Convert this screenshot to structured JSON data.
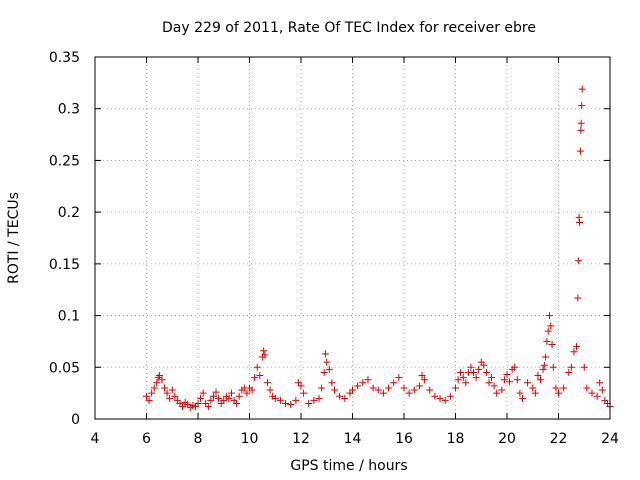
{
  "chart_data": {
    "type": "scatter",
    "title": "Day 229 of 2011, Rate Of TEC Index for receiver ebre",
    "xlabel": "GPS time / hours",
    "ylabel": "ROTI / TECUs",
    "xlim": [
      4,
      24
    ],
    "ylim": [
      0,
      0.35
    ],
    "x_ticks": [
      4,
      6,
      8,
      10,
      12,
      14,
      16,
      18,
      20,
      22,
      24
    ],
    "x_tick_labels": [
      "4",
      "6",
      "8",
      "10",
      "12",
      "14",
      "16",
      "18",
      "20",
      "22",
      "24"
    ],
    "y_ticks": [
      0,
      0.05,
      0.1,
      0.15,
      0.2,
      0.25,
      0.3,
      0.35
    ],
    "y_tick_labels": [
      "0",
      "0.05",
      "0.1",
      "0.15",
      "0.2",
      "0.25",
      "0.3",
      "0.35"
    ],
    "grid": true,
    "marker": "+",
    "marker_color": "#e00000",
    "series": [
      {
        "name": "ROTI",
        "points": [
          [
            6.0,
            0.022
          ],
          [
            6.1,
            0.018
          ],
          [
            6.2,
            0.025
          ],
          [
            6.3,
            0.03
          ],
          [
            6.4,
            0.035
          ],
          [
            6.45,
            0.04
          ],
          [
            6.5,
            0.042
          ],
          [
            6.6,
            0.038
          ],
          [
            6.7,
            0.03
          ],
          [
            6.8,
            0.025
          ],
          [
            6.9,
            0.02
          ],
          [
            7.0,
            0.028
          ],
          [
            7.1,
            0.022
          ],
          [
            7.2,
            0.018
          ],
          [
            7.3,
            0.015
          ],
          [
            7.4,
            0.012
          ],
          [
            7.5,
            0.016
          ],
          [
            7.6,
            0.014
          ],
          [
            7.7,
            0.011
          ],
          [
            7.8,
            0.013
          ],
          [
            7.9,
            0.012
          ],
          [
            8.0,
            0.015
          ],
          [
            8.1,
            0.02
          ],
          [
            8.2,
            0.025
          ],
          [
            8.3,
            0.015
          ],
          [
            8.4,
            0.012
          ],
          [
            8.5,
            0.018
          ],
          [
            8.6,
            0.022
          ],
          [
            8.7,
            0.026
          ],
          [
            8.8,
            0.02
          ],
          [
            8.9,
            0.015
          ],
          [
            9.0,
            0.018
          ],
          [
            9.1,
            0.022
          ],
          [
            9.2,
            0.02
          ],
          [
            9.3,
            0.025
          ],
          [
            9.4,
            0.018
          ],
          [
            9.5,
            0.015
          ],
          [
            9.6,
            0.022
          ],
          [
            9.7,
            0.028
          ],
          [
            9.8,
            0.03
          ],
          [
            9.9,
            0.025
          ],
          [
            10.0,
            0.03
          ],
          [
            10.1,
            0.028
          ],
          [
            10.2,
            0.04
          ],
          [
            10.3,
            0.05
          ],
          [
            10.4,
            0.042
          ],
          [
            10.5,
            0.06
          ],
          [
            10.55,
            0.066
          ],
          [
            10.6,
            0.062
          ],
          [
            10.7,
            0.035
          ],
          [
            10.8,
            0.028
          ],
          [
            10.9,
            0.022
          ],
          [
            11.0,
            0.02
          ],
          [
            11.2,
            0.018
          ],
          [
            11.4,
            0.015
          ],
          [
            11.6,
            0.014
          ],
          [
            11.8,
            0.018
          ],
          [
            11.9,
            0.035
          ],
          [
            12.0,
            0.032
          ],
          [
            12.1,
            0.025
          ],
          [
            12.3,
            0.015
          ],
          [
            12.5,
            0.018
          ],
          [
            12.7,
            0.02
          ],
          [
            12.8,
            0.03
          ],
          [
            12.9,
            0.045
          ],
          [
            12.95,
            0.063
          ],
          [
            13.0,
            0.055
          ],
          [
            13.1,
            0.048
          ],
          [
            13.2,
            0.035
          ],
          [
            13.3,
            0.028
          ],
          [
            13.5,
            0.022
          ],
          [
            13.7,
            0.02
          ],
          [
            13.9,
            0.025
          ],
          [
            14.0,
            0.028
          ],
          [
            14.2,
            0.032
          ],
          [
            14.4,
            0.035
          ],
          [
            14.6,
            0.038
          ],
          [
            14.8,
            0.03
          ],
          [
            15.0,
            0.028
          ],
          [
            15.2,
            0.025
          ],
          [
            15.4,
            0.03
          ],
          [
            15.6,
            0.035
          ],
          [
            15.8,
            0.04
          ],
          [
            16.0,
            0.03
          ],
          [
            16.2,
            0.025
          ],
          [
            16.4,
            0.028
          ],
          [
            16.6,
            0.032
          ],
          [
            16.7,
            0.042
          ],
          [
            16.8,
            0.038
          ],
          [
            17.0,
            0.028
          ],
          [
            17.2,
            0.022
          ],
          [
            17.4,
            0.02
          ],
          [
            17.6,
            0.018
          ],
          [
            17.8,
            0.022
          ],
          [
            18.0,
            0.03
          ],
          [
            18.1,
            0.038
          ],
          [
            18.2,
            0.045
          ],
          [
            18.3,
            0.04
          ],
          [
            18.4,
            0.035
          ],
          [
            18.5,
            0.045
          ],
          [
            18.6,
            0.05
          ],
          [
            18.7,
            0.045
          ],
          [
            18.8,
            0.04
          ],
          [
            18.9,
            0.048
          ],
          [
            19.0,
            0.055
          ],
          [
            19.1,
            0.052
          ],
          [
            19.2,
            0.045
          ],
          [
            19.3,
            0.035
          ],
          [
            19.4,
            0.04
          ],
          [
            19.5,
            0.032
          ],
          [
            19.6,
            0.025
          ],
          [
            19.8,
            0.028
          ],
          [
            19.9,
            0.038
          ],
          [
            20.0,
            0.043
          ],
          [
            20.1,
            0.036
          ],
          [
            20.2,
            0.048
          ],
          [
            20.3,
            0.05
          ],
          [
            20.4,
            0.038
          ],
          [
            20.5,
            0.025
          ],
          [
            20.6,
            0.02
          ],
          [
            20.8,
            0.035
          ],
          [
            21.0,
            0.03
          ],
          [
            21.1,
            0.025
          ],
          [
            21.2,
            0.042
          ],
          [
            21.3,
            0.038
          ],
          [
            21.4,
            0.048
          ],
          [
            21.45,
            0.052
          ],
          [
            21.5,
            0.06
          ],
          [
            21.55,
            0.075
          ],
          [
            21.6,
            0.085
          ],
          [
            21.65,
            0.1
          ],
          [
            21.7,
            0.09
          ],
          [
            21.75,
            0.072
          ],
          [
            21.8,
            0.05
          ],
          [
            21.9,
            0.03
          ],
          [
            22.0,
            0.025
          ],
          [
            22.2,
            0.03
          ],
          [
            22.4,
            0.045
          ],
          [
            22.5,
            0.05
          ],
          [
            22.6,
            0.065
          ],
          [
            22.7,
            0.07
          ],
          [
            22.75,
            0.117
          ],
          [
            22.77,
            0.153
          ],
          [
            22.8,
            0.195
          ],
          [
            22.82,
            0.19
          ],
          [
            22.85,
            0.259
          ],
          [
            22.87,
            0.279
          ],
          [
            22.88,
            0.286
          ],
          [
            22.9,
            0.303
          ],
          [
            22.92,
            0.319
          ],
          [
            23.0,
            0.05
          ],
          [
            23.1,
            0.03
          ],
          [
            23.3,
            0.025
          ],
          [
            23.5,
            0.022
          ],
          [
            23.6,
            0.035
          ],
          [
            23.7,
            0.028
          ],
          [
            23.8,
            0.018
          ],
          [
            23.9,
            0.015
          ],
          [
            24.0,
            0.012
          ]
        ]
      }
    ]
  }
}
